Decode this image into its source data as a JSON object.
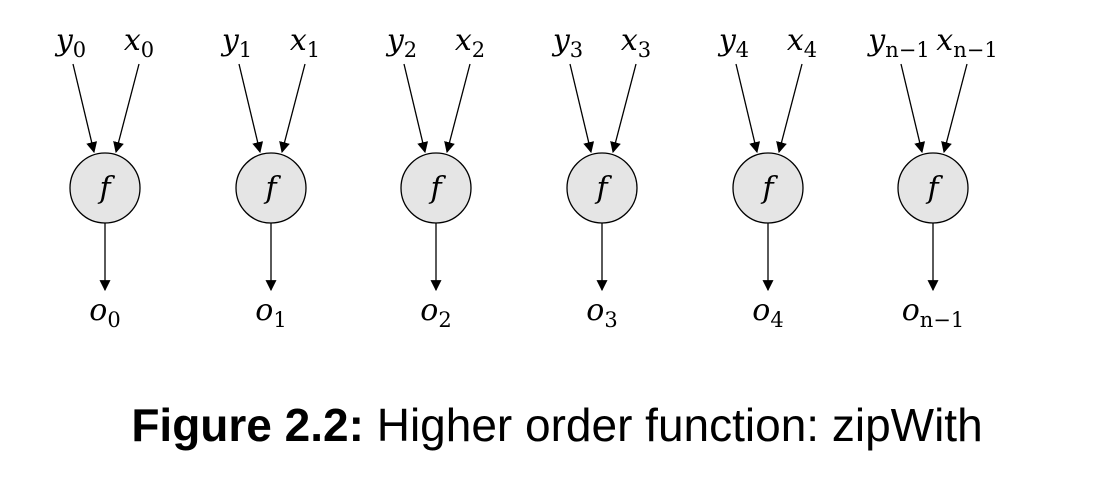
{
  "nodes": [
    {
      "function": "f",
      "y": {
        "base": "y",
        "sub": "0"
      },
      "x": {
        "base": "x",
        "sub": "0"
      },
      "o": {
        "base": "o",
        "sub": "0"
      }
    },
    {
      "function": "f",
      "y": {
        "base": "y",
        "sub": "1"
      },
      "x": {
        "base": "x",
        "sub": "1"
      },
      "o": {
        "base": "o",
        "sub": "1"
      }
    },
    {
      "function": "f",
      "y": {
        "base": "y",
        "sub": "2"
      },
      "x": {
        "base": "x",
        "sub": "2"
      },
      "o": {
        "base": "o",
        "sub": "2"
      }
    },
    {
      "function": "f",
      "y": {
        "base": "y",
        "sub": "3"
      },
      "x": {
        "base": "x",
        "sub": "3"
      },
      "o": {
        "base": "o",
        "sub": "3"
      }
    },
    {
      "function": "f",
      "y": {
        "base": "y",
        "sub": "4"
      },
      "x": {
        "base": "x",
        "sub": "4"
      },
      "o": {
        "base": "o",
        "sub": "4"
      }
    },
    {
      "function": "f",
      "y": {
        "base": "y",
        "sub": "n−1"
      },
      "x": {
        "base": "x",
        "sub": "n−1"
      },
      "o": {
        "base": "o",
        "sub": "n−1"
      }
    }
  ],
  "caption": {
    "label": "Figure 2.2:",
    "text": "Higher order function: zipWith"
  }
}
